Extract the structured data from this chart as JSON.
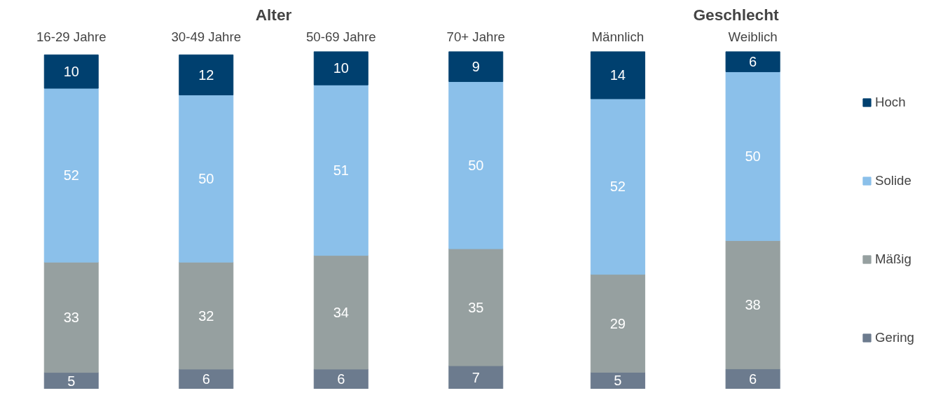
{
  "chart_data": [
    {
      "type": "bar",
      "title": "Alter",
      "categories": [
        "16-29 Jahre",
        "30-49 Jahre",
        "50-69 Jahre",
        "70+ Jahre"
      ],
      "stacked": true,
      "data_labels": true,
      "tick_labels": "x",
      "legend": false,
      "series": [
        {
          "color": "#6c7b8e",
          "values": [
            5,
            6,
            6,
            7
          ]
        },
        {
          "color": "#96a0a0",
          "values": [
            33,
            32,
            34,
            35
          ]
        },
        {
          "color": "#8bc0ea",
          "values": [
            52,
            50,
            51,
            50
          ]
        },
        {
          "color": "#00406f",
          "values": [
            10,
            12,
            10,
            9
          ]
        }
      ]
    },
    {
      "type": "bar",
      "title": "Geschlecht",
      "categories": [
        "Männlich",
        "Weiblich"
      ],
      "stacked": true,
      "data_labels": true,
      "tick_labels": "x",
      "legend": "right",
      "series": [
        {
          "name": "Gering",
          "color": "#6c7b8e",
          "values": [
            5,
            6
          ]
        },
        {
          "name": "Mäßig",
          "color": "#96a0a0",
          "values": [
            29,
            38
          ]
        },
        {
          "name": "Solide",
          "color": "#8bc0ea",
          "values": [
            52,
            50
          ]
        },
        {
          "name": "Hoch",
          "color": "#00406f",
          "values": [
            14,
            6
          ]
        }
      ]
    }
  ]
}
